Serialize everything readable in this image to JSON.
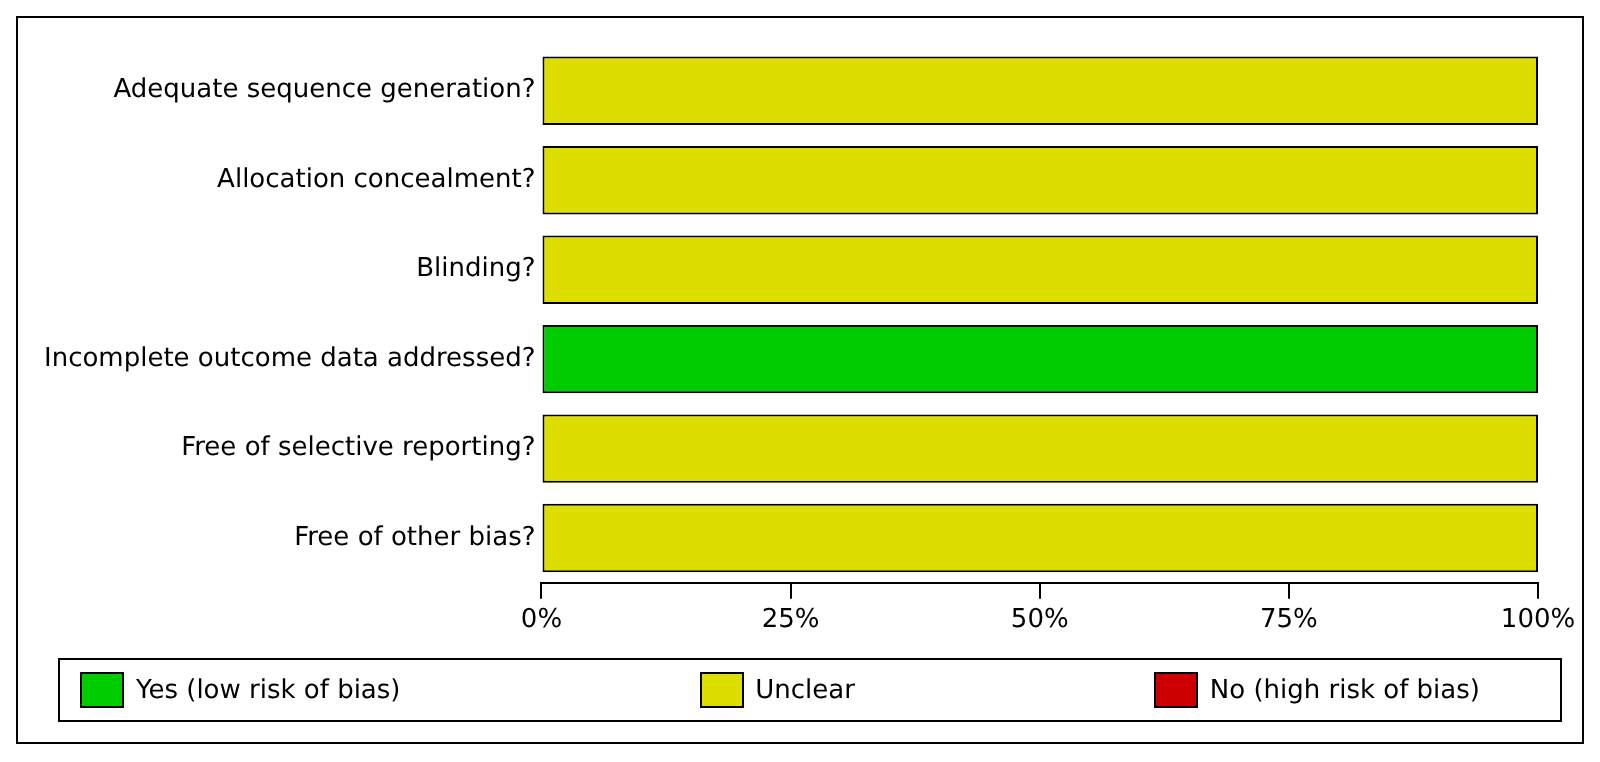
{
  "chart_data": {
    "type": "bar",
    "orientation": "horizontal",
    "stacked": true,
    "categories": [
      "Adequate sequence generation?",
      "Allocation concealment?",
      "Blinding?",
      "Incomplete outcome data addressed?",
      "Free of selective reporting?",
      "Free of other bias?"
    ],
    "series": [
      {
        "name": "Yes (low risk of bias)",
        "color": "#00cc00",
        "values": [
          0,
          0,
          0,
          100,
          0,
          0
        ]
      },
      {
        "name": "Unclear",
        "color": "#dddd00",
        "values": [
          100,
          100,
          100,
          0,
          100,
          100
        ]
      },
      {
        "name": "No (high risk of bias)",
        "color": "#cc0000",
        "values": [
          0,
          0,
          0,
          0,
          0,
          0
        ]
      }
    ],
    "xlim": [
      0,
      100
    ],
    "xticks": [
      {
        "value": 0,
        "label": "0%"
      },
      {
        "value": 25,
        "label": "25%"
      },
      {
        "value": 50,
        "label": "50%"
      },
      {
        "value": 75,
        "label": "75%"
      },
      {
        "value": 100,
        "label": "100%"
      }
    ],
    "grid": false,
    "legend": "bottom"
  }
}
